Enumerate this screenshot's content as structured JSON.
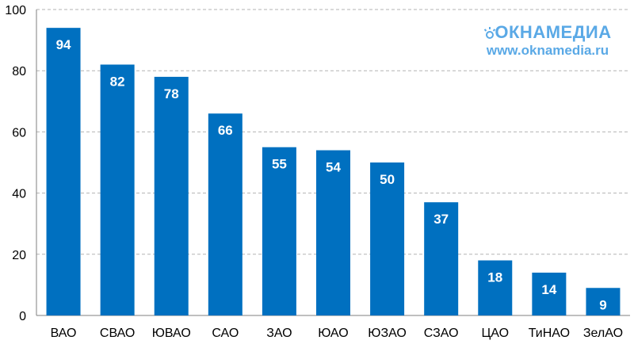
{
  "chart_data": {
    "type": "bar",
    "categories": [
      "ВАО",
      "СВАО",
      "ЮВАО",
      "САО",
      "ЗАО",
      "ЮАО",
      "ЮЗАО",
      "СЗАО",
      "ЦАО",
      "ТиНАО",
      "ЗелАО"
    ],
    "values": [
      94,
      82,
      78,
      66,
      55,
      54,
      50,
      37,
      18,
      14,
      9
    ],
    "ylim": [
      0,
      100
    ],
    "yticks": [
      0,
      20,
      40,
      60,
      80,
      100
    ],
    "grid": true,
    "bar_color": "#0070c0",
    "value_label_color": "#ffffff",
    "title": "",
    "xlabel": "",
    "ylabel": ""
  },
  "watermark": {
    "brand": "ОКНАМЕДИА",
    "url": "www.oknamedia.ru",
    "color": "#5aa9e6",
    "icon": "sun-icon"
  }
}
